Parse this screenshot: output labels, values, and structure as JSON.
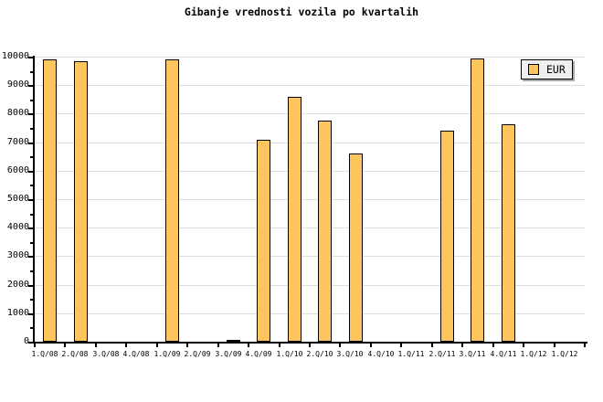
{
  "title": "Gibanje vrednosti vozila po kvartalih",
  "legend": {
    "label": "EUR"
  },
  "colors": {
    "background": "#ffffff",
    "bar_fill": "#fcc55e",
    "bar_border": "#000000",
    "grid": "#dedede",
    "axis": "#000000",
    "legend_bg": "#efefef",
    "legend_shadow": "#a9a9a9",
    "text": "#000000"
  },
  "chart_data": {
    "type": "bar",
    "title": "Gibanje vrednosti vozila po kvartalih",
    "categories": [
      "1.Q/08",
      "2.Q/08",
      "3.Q/08",
      "4.Q/08",
      "1.Q/09",
      "2.Q/09",
      "3.Q/09",
      "4.Q/09",
      "1.Q/10",
      "2.Q/10",
      "3.Q/10",
      "4.Q/10",
      "1.Q/11",
      "2.Q/11",
      "3.Q/11",
      "4.Q/11",
      "1.Q/12",
      "1.Q/12"
    ],
    "series": [
      {
        "name": "EUR",
        "values": [
          9900,
          9830,
          0,
          0,
          9900,
          0,
          80,
          7080,
          8600,
          7760,
          6600,
          0,
          0,
          7410,
          9920,
          7620,
          0,
          0
        ]
      }
    ],
    "xlabel": "",
    "ylabel": "",
    "ylim": [
      0,
      10000
    ],
    "ytick_step": 1000,
    "ytick_minor_step": 500,
    "grid": "horizontal",
    "legend_position": "top-right"
  }
}
